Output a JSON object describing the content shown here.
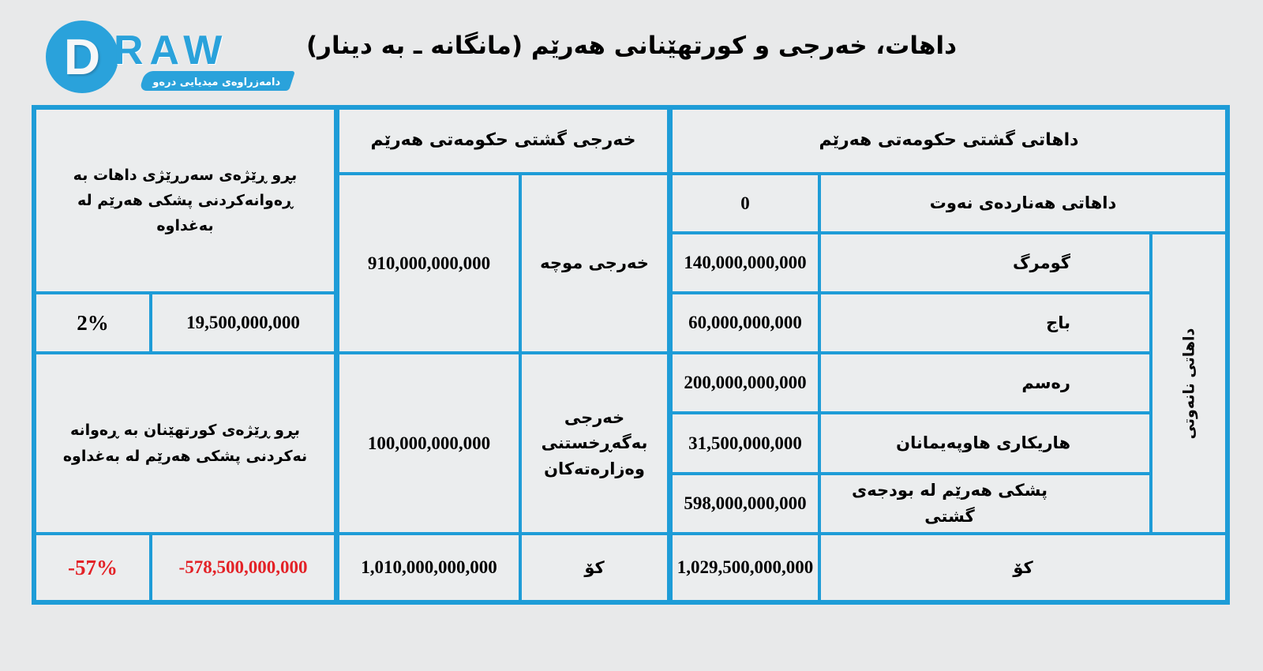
{
  "page": {
    "title": "داهات، خەرجی و کورتهێنانی هەرێم (مانگانە ـ بە دینار)"
  },
  "logo": {
    "d_letter": "D",
    "raw_text": "RAW",
    "tagline": "دامەزراوەی میدیایی درەو"
  },
  "colors": {
    "border_blue": "#1e9cd7",
    "logo_blue": "#2aa2db",
    "cell_bg": "#ebedee",
    "page_bg": "#e8e9ea",
    "negative_red": "#e32227",
    "text_black": "#000000"
  },
  "table": {
    "revenue": {
      "header": "داهاتی گشتی حکومەتی هەرێم",
      "vertical_label": "داهاتی نانەوتی",
      "oil_row": {
        "label": "داهاتی هەناردەی نەوت",
        "value": "0"
      },
      "rows": [
        {
          "label": "گومرگ",
          "value": "140,000,000,000"
        },
        {
          "label": "باج",
          "value": "60,000,000,000"
        },
        {
          "label": "رەسم",
          "value": "200,000,000,000"
        },
        {
          "label": "هاریکاری هاوپەیمانان",
          "value": "31,500,000,000"
        },
        {
          "label": "پشکی هەرێم لە بودجەی گشتی",
          "value": "598,000,000,000"
        }
      ],
      "total": {
        "label": "کۆ",
        "value": "1,029,500,000,000"
      }
    },
    "expenses": {
      "header": "خەرجی گشتی حکومەتی هەرێم",
      "salary_row": {
        "label": "خەرجی موچە",
        "value": "910,000,000,000"
      },
      "operating_row": {
        "label": "خەرجی بەگەڕخستنی وەزارەتەکان",
        "value": "100,000,000,000"
      },
      "total": {
        "label": "کۆ",
        "value": "1,010,000,000,000"
      }
    },
    "balance": {
      "surplus_note": "بڕو ڕێژەی سەرڕێژی داهات بە ڕەوانەکردنی پشکی هەرێم لە بەغداوە",
      "surplus_pct": "2%",
      "surplus_value": "19,500,000,000",
      "deficit_note": "بڕو ڕێژەی کورتهێنان بە ڕەوانە نەکردنی پشکی هەرێم لە بەغداوە",
      "deficit_pct": "-57%",
      "deficit_value": "-578,500,000,000"
    }
  },
  "chart_data": {
    "type": "table",
    "title": "داهات، خەرجی و کورتهێنانی هەرێم (مانگانە ـ بە دینار)",
    "sections": [
      {
        "name": "داهاتی گشتی حکومەتی هەرێم",
        "group_label_for_non_oil_rows": "داهاتی نانەوتی",
        "rows": [
          {
            "label": "داهاتی هەناردەی نەوت",
            "value": 0
          },
          {
            "label": "گومرگ",
            "value": 140000000000
          },
          {
            "label": "باج",
            "value": 60000000000
          },
          {
            "label": "رەسم",
            "value": 200000000000
          },
          {
            "label": "هاریکاری هاوپەیمانان",
            "value": 31500000000
          },
          {
            "label": "پشکی هەرێم لە بودجەی گشتی",
            "value": 598000000000
          },
          {
            "label": "کۆ",
            "value": 1029500000000
          }
        ]
      },
      {
        "name": "خەرجی گشتی حکومەتی هەرێم",
        "rows": [
          {
            "label": "خەرجی موچە",
            "value": 910000000000
          },
          {
            "label": "خەرجی بەگەڕخستنی وەزارەتەکان",
            "value": 100000000000
          },
          {
            "label": "کۆ",
            "value": 1010000000000
          }
        ]
      },
      {
        "name": "balance",
        "rows": [
          {
            "label": "بڕو ڕێژەی سەرڕێژی داهات بە ڕەوانەکردنی پشکی هەرێم لە بەغداوە",
            "pct": "2%",
            "value": 19500000000
          },
          {
            "label": "بڕو ڕێژەی کورتهێنان بە ڕەوانە نەکردنی پشکی هەرێم لە بەغداوە",
            "pct": "-57%",
            "value": -578500000000
          }
        ]
      }
    ]
  }
}
